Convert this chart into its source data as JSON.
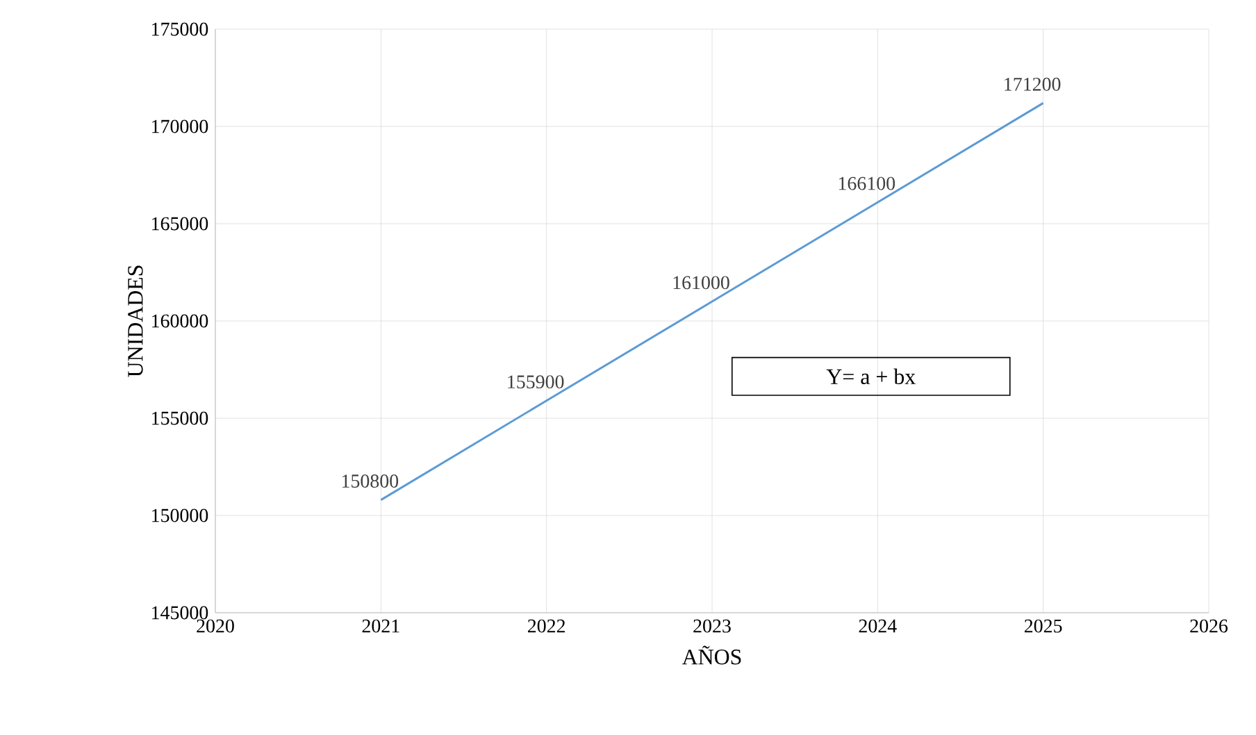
{
  "chart_data": {
    "type": "line",
    "xlabel": "AÑOS",
    "ylabel": "UNIDADES",
    "x": [
      2021,
      2022,
      2023,
      2024,
      2025
    ],
    "series": [
      {
        "color": "#5b9bd5",
        "values": [
          150800,
          155900,
          161000,
          166100,
          171200
        ]
      }
    ],
    "data_labels": true,
    "xlim": [
      2020,
      2026
    ],
    "xticks": [
      2020,
      2021,
      2022,
      2023,
      2024,
      2025,
      2026
    ],
    "ylim": [
      145000,
      175000
    ],
    "yticks": [
      145000,
      150000,
      155000,
      160000,
      165000,
      170000,
      175000
    ],
    "grid": true,
    "marker": "none",
    "line_style": "solid",
    "annotations": [
      "Y= a + bx"
    ]
  }
}
